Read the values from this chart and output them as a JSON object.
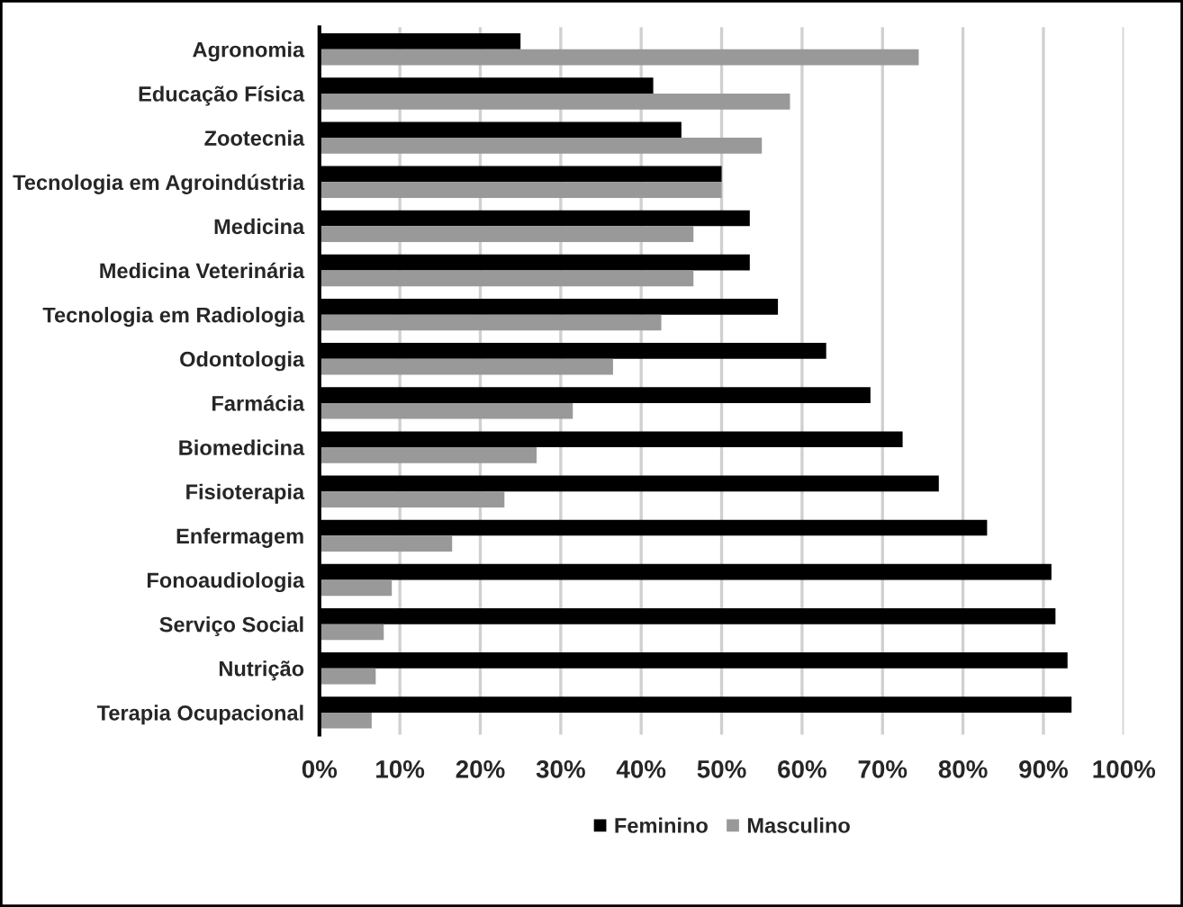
{
  "chart_data": {
    "type": "bar",
    "orientation": "horizontal",
    "categories": [
      "Agronomia",
      "Educação Física",
      "Zootecnia",
      "Tecnologia em Agroindústria",
      "Medicina",
      "Medicina Veterinária",
      "Tecnologia em Radiologia",
      "Odontologia",
      "Farmácia",
      "Biomedicina",
      "Fisioterapia",
      "Enfermagem",
      "Fonoaudiologia",
      "Serviço Social",
      "Nutrição",
      "Terapia Ocupacional"
    ],
    "series": [
      {
        "name": "Feminino",
        "color": "#000000",
        "values": [
          25,
          41.5,
          45,
          50,
          53.5,
          53.5,
          57,
          63,
          68.5,
          72.5,
          77,
          83,
          91,
          91.5,
          93,
          93.5
        ]
      },
      {
        "name": "Masculino",
        "color": "#999999",
        "values": [
          74.5,
          58.5,
          55,
          50,
          46.5,
          46.5,
          42.5,
          36.5,
          31.5,
          27,
          23,
          16.5,
          9,
          8,
          7,
          6.5
        ]
      }
    ],
    "xlim": [
      0,
      100
    ],
    "xticks": [
      {
        "value": 0,
        "label": "0%"
      },
      {
        "value": 10,
        "label": "10%"
      },
      {
        "value": 20,
        "label": "20%"
      },
      {
        "value": 30,
        "label": "30%"
      },
      {
        "value": 40,
        "label": "40%"
      },
      {
        "value": 50,
        "label": "50%"
      },
      {
        "value": 60,
        "label": "60%"
      },
      {
        "value": 70,
        "label": "70%"
      },
      {
        "value": 80,
        "label": "80%"
      },
      {
        "value": 90,
        "label": "90%"
      },
      {
        "value": 100,
        "label": "100%"
      }
    ],
    "grid": "x",
    "legend": "bottom"
  }
}
